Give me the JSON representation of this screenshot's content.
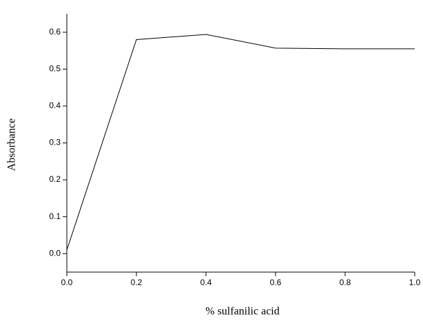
{
  "chart_data": {
    "type": "line",
    "x": [
      0,
      0.2,
      0.4,
      0.6,
      0.8,
      1.0
    ],
    "series": [
      {
        "color": "#000000",
        "values": [
          0.01,
          0.58,
          0.594,
          0.557,
          0.555,
          0.555
        ]
      }
    ],
    "xlabel": "% sulfanilic acid",
    "ylabel": "Absorbance",
    "xlim": [
      0,
      1.0
    ],
    "ylim": [
      -0.05,
      0.65
    ],
    "xticks": [
      {
        "value": 0,
        "label": "0.0"
      },
      0.2,
      0.4,
      0.6,
      0.8,
      {
        "value": 1.0,
        "label": "1.0"
      }
    ],
    "yticks": [
      {
        "value": 0,
        "label": "0.0"
      },
      0.1,
      0.2,
      0.3,
      0.4,
      0.5,
      0.6
    ]
  }
}
